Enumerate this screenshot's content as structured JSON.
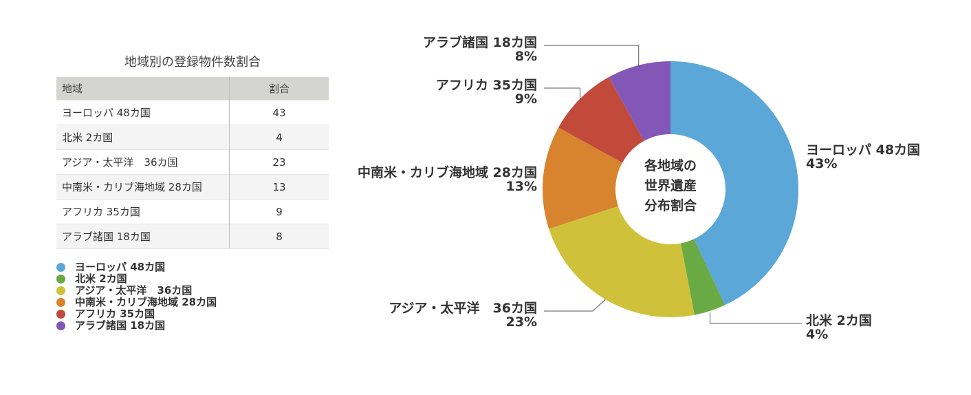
{
  "table": {
    "title": "地域別の登録物件数割合",
    "headers": [
      "地域",
      "割合"
    ],
    "rows": [
      [
        "ヨーロッパ 48カ国",
        "43"
      ],
      [
        "北米 2カ国",
        "4"
      ],
      [
        "アジア・太平洋　36カ国",
        "23"
      ],
      [
        "中南米・カリブ海地域 28カ国",
        "13"
      ],
      [
        "アフリカ 35カ国",
        "9"
      ],
      [
        "アラブ諸国 18カ国",
        "8"
      ]
    ]
  },
  "chart_data": {
    "type": "pie",
    "style": "donut",
    "center_text": [
      "各地域の",
      "世界遺産",
      "分布割合"
    ],
    "categories": [
      "ヨーロッパ 48カ国",
      "北米 2カ国",
      "アジア・太平洋　36カ国",
      "中南米・カリブ海地域 28カ国",
      "アフリカ 35カ国",
      "アラブ諸国 18カ国"
    ],
    "values": [
      43,
      4,
      23,
      13,
      9,
      8
    ],
    "labels": [
      "43%",
      "4%",
      "23%",
      "13%",
      "9%",
      "8%"
    ],
    "colors": [
      "#5aa7d8",
      "#6aaa44",
      "#cfc23a",
      "#d8842f",
      "#c24a3b",
      "#8257b7"
    ],
    "legend_position": "bottom-left"
  }
}
